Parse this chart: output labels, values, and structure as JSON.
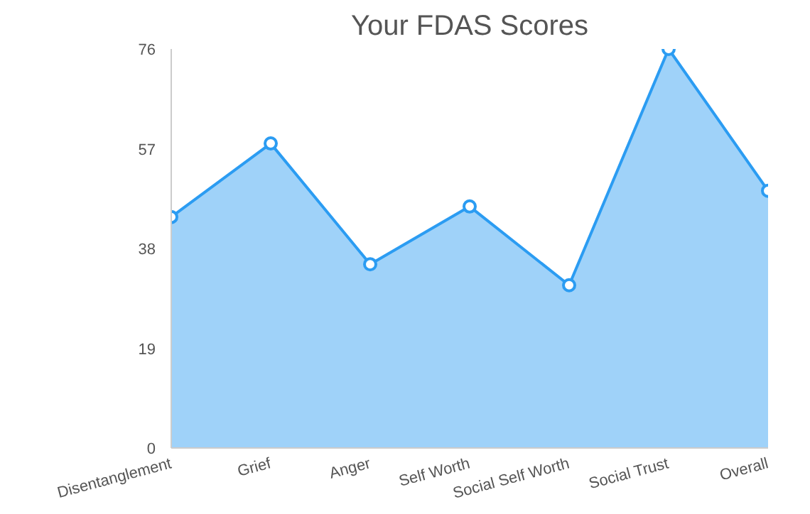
{
  "chart_data": {
    "type": "area",
    "title": "Your FDAS Scores",
    "categories": [
      "Disentanglement",
      "Grief",
      "Anger",
      "Self Worth",
      "Social Self Worth",
      "Social Trust",
      "Overall"
    ],
    "series": [
      {
        "color": "#2b9cf2",
        "values": [
          44,
          58,
          35,
          46,
          31,
          76,
          49
        ]
      }
    ],
    "ylim": [
      0,
      76
    ],
    "yticks": [
      0,
      19,
      38,
      57,
      76
    ],
    "marker": "circle"
  }
}
